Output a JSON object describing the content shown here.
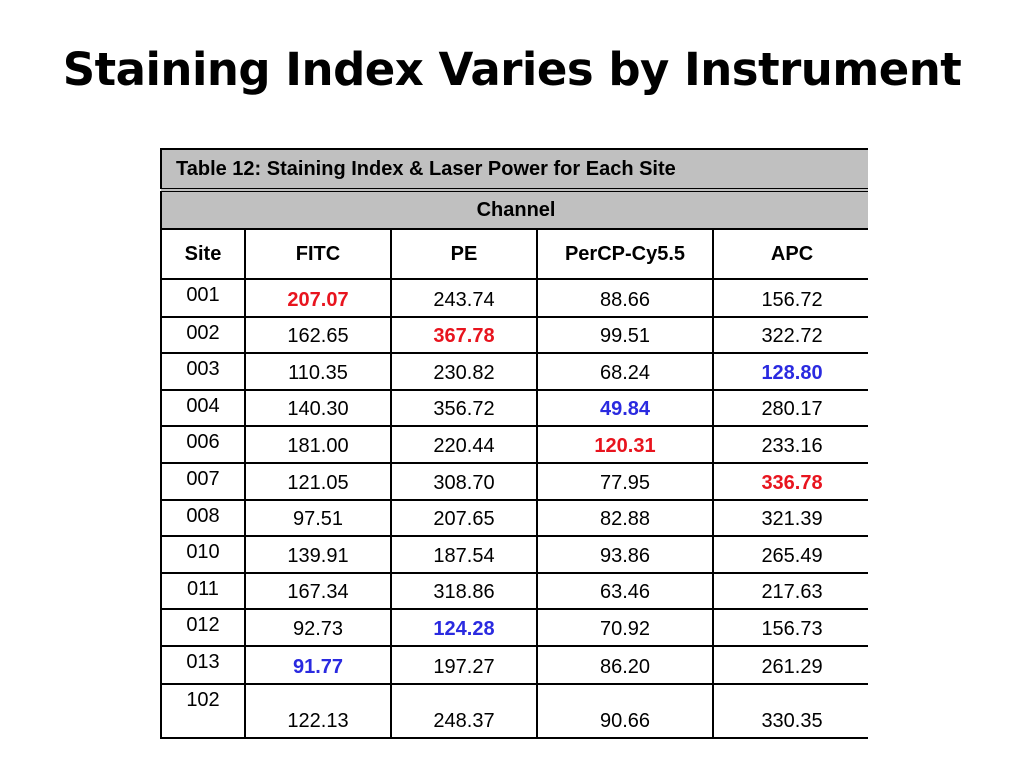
{
  "slide": {
    "title": "Staining Index Varies by Instrument"
  },
  "table": {
    "caption": "Table 12: Staining Index & Laser Power for Each Site",
    "group_header": "Channel",
    "columns": [
      "Site",
      "FITC",
      "PE",
      "PerCP-Cy5.5",
      "APC"
    ],
    "rows": [
      {
        "site": "001",
        "values": [
          "207.07",
          "243.74",
          "88.66",
          "156.72"
        ],
        "highlight": [
          "red",
          "",
          "",
          ""
        ]
      },
      {
        "site": "002",
        "values": [
          "162.65",
          "367.78",
          "99.51",
          "322.72"
        ],
        "highlight": [
          "",
          "red",
          "",
          ""
        ]
      },
      {
        "site": "003",
        "values": [
          "110.35",
          "230.82",
          "68.24",
          "128.80"
        ],
        "highlight": [
          "",
          "",
          "",
          "blue"
        ]
      },
      {
        "site": "004",
        "values": [
          "140.30",
          "356.72",
          "49.84",
          "280.17"
        ],
        "highlight": [
          "",
          "",
          "blue",
          ""
        ]
      },
      {
        "site": "006",
        "values": [
          "181.00",
          "220.44",
          "120.31",
          "233.16"
        ],
        "highlight": [
          "",
          "",
          "red",
          ""
        ]
      },
      {
        "site": "007",
        "values": [
          "121.05",
          "308.70",
          "77.95",
          "336.78"
        ],
        "highlight": [
          "",
          "",
          "",
          "red"
        ]
      },
      {
        "site": "008",
        "values": [
          "97.51",
          "207.65",
          "82.88",
          "321.39"
        ],
        "highlight": [
          "",
          "",
          "",
          ""
        ]
      },
      {
        "site": "010",
        "values": [
          "139.91",
          "187.54",
          "93.86",
          "265.49"
        ],
        "highlight": [
          "",
          "",
          "",
          ""
        ]
      },
      {
        "site": "011",
        "values": [
          "167.34",
          "318.86",
          "63.46",
          "217.63"
        ],
        "highlight": [
          "",
          "",
          "",
          ""
        ]
      },
      {
        "site": "012",
        "values": [
          "92.73",
          "124.28",
          "70.92",
          "156.73"
        ],
        "highlight": [
          "",
          "blue",
          "",
          ""
        ]
      },
      {
        "site": "013",
        "values": [
          "91.77",
          "197.27",
          "86.20",
          "261.29"
        ],
        "highlight": [
          "blue",
          "",
          "",
          ""
        ]
      },
      {
        "site": "102",
        "values": [
          "122.13",
          "248.37",
          "90.66",
          "330.35"
        ],
        "highlight": [
          "",
          "",
          "",
          ""
        ]
      }
    ],
    "highlight_colors": {
      "red": "#e8141e",
      "blue": "#2a2ae0"
    }
  }
}
